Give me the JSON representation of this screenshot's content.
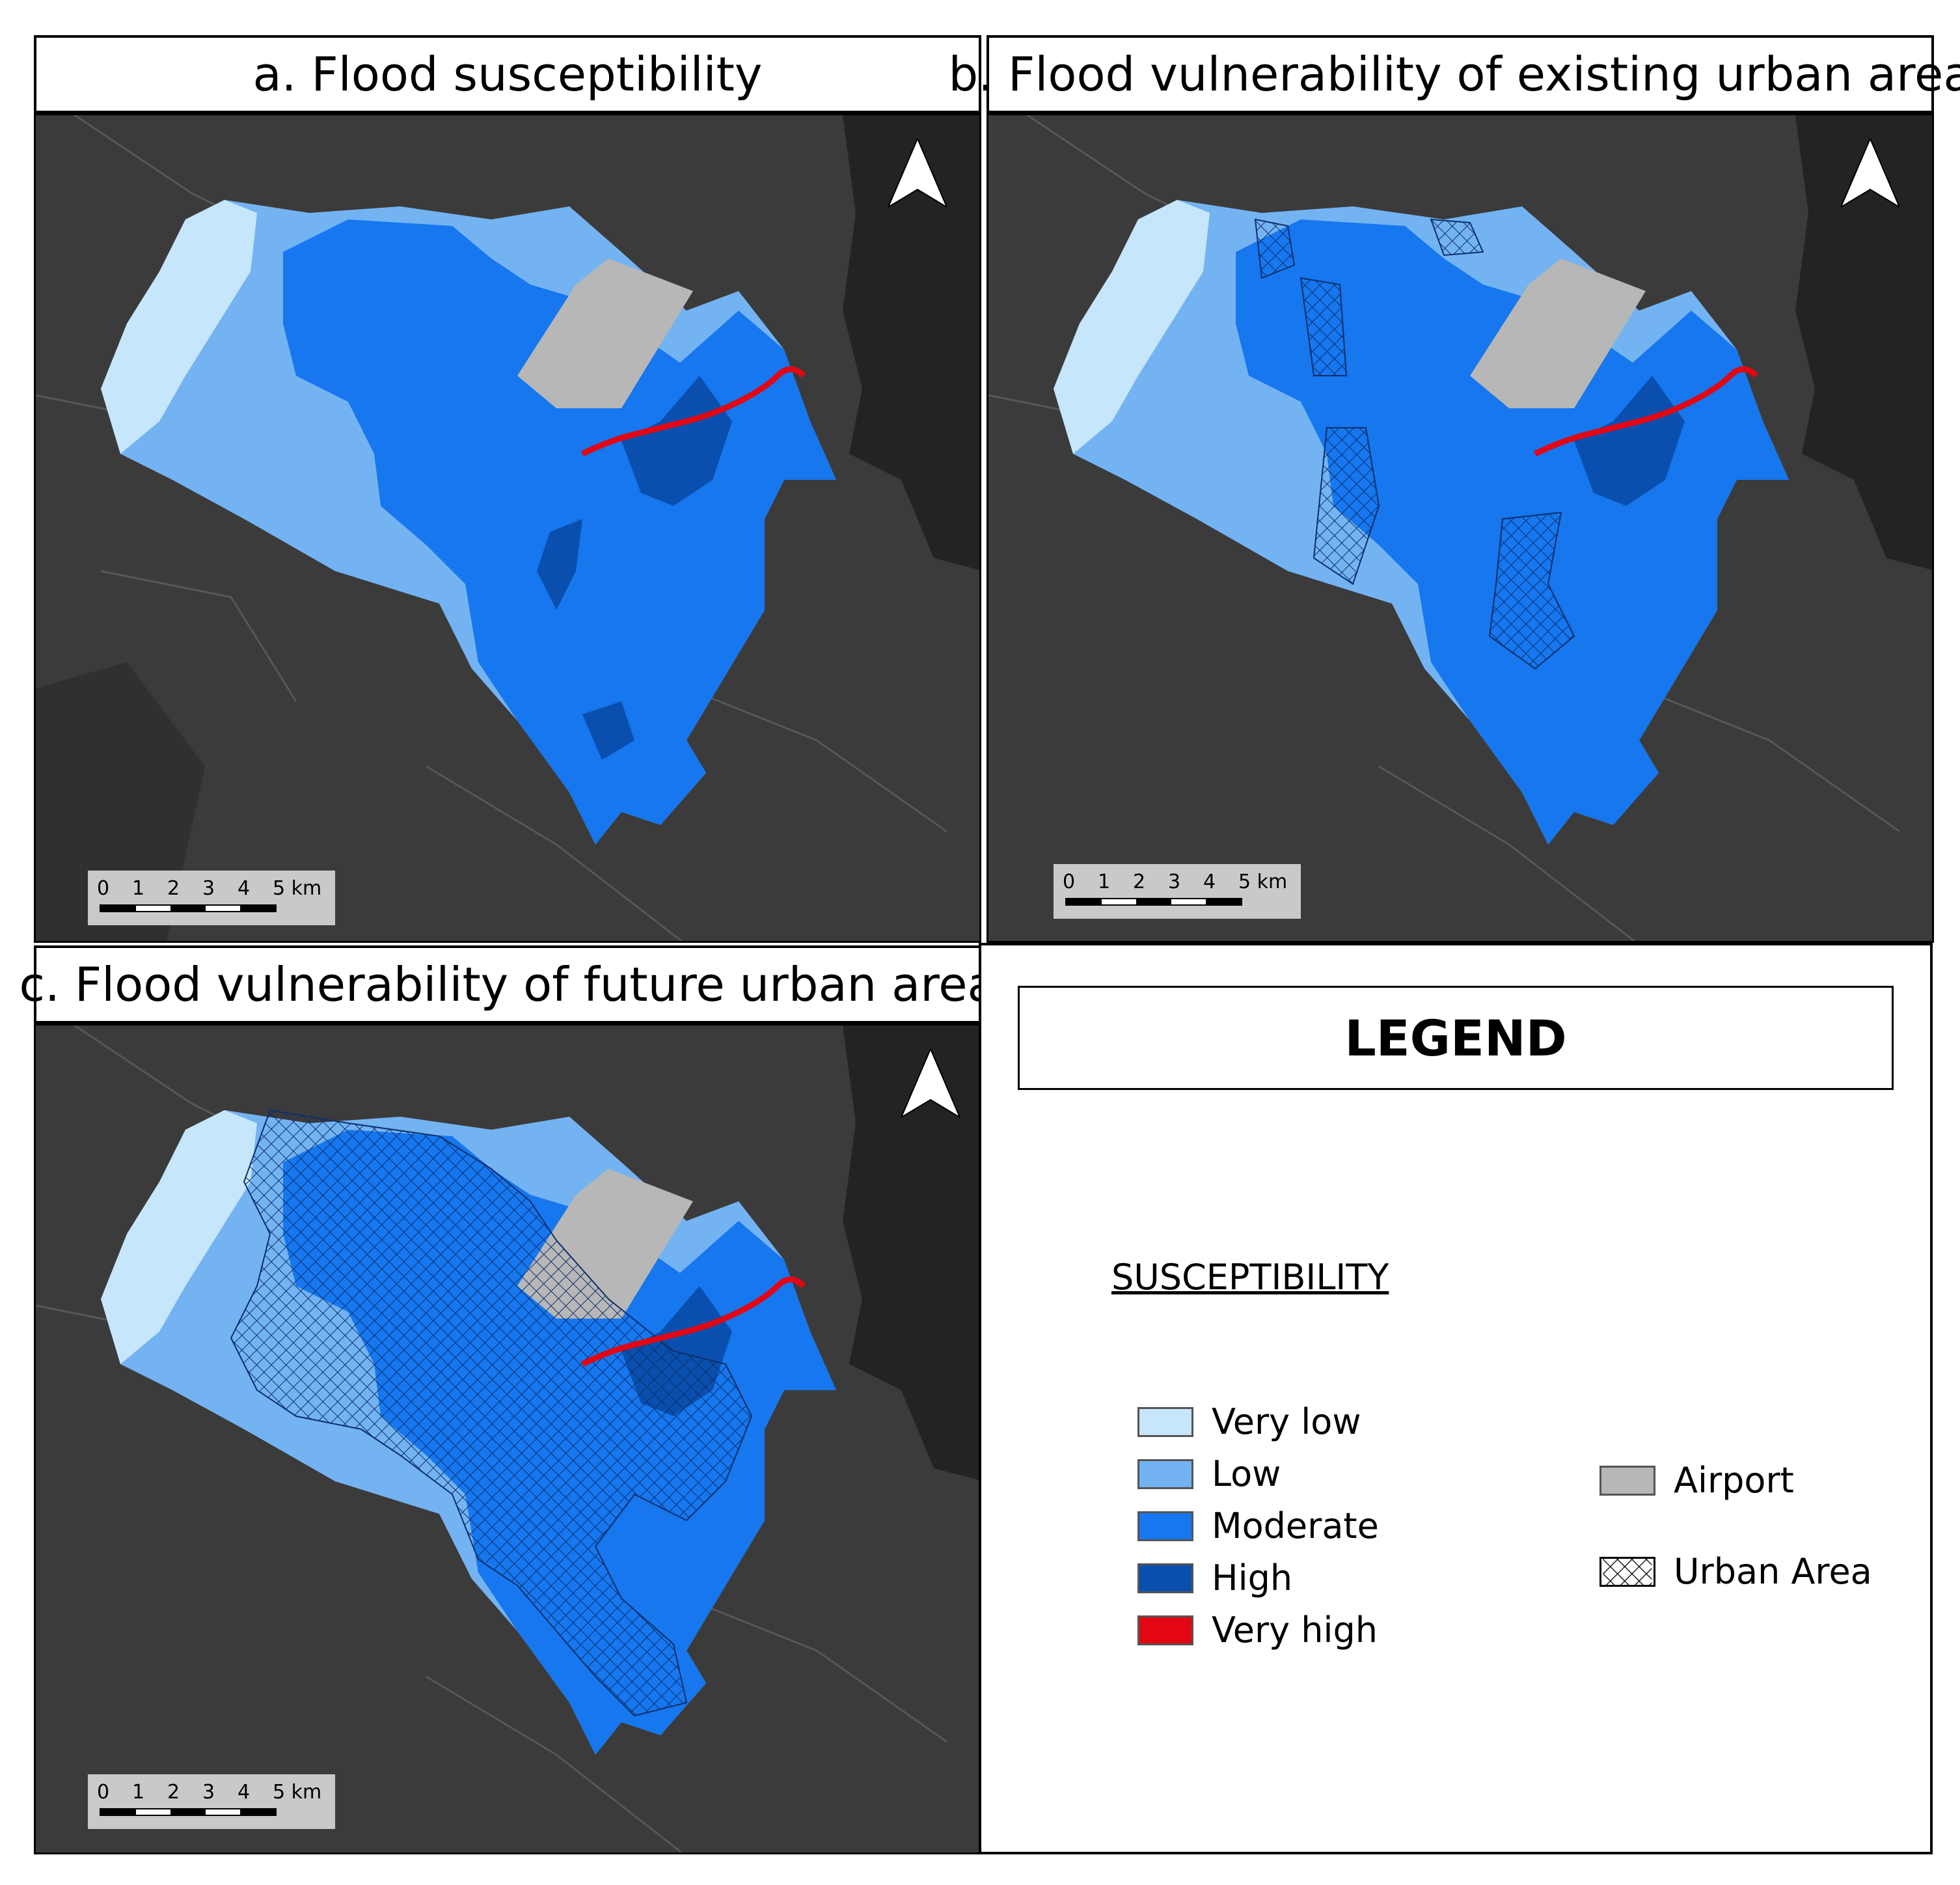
{
  "panels": {
    "a": {
      "title": "a. Flood susceptibility"
    },
    "b": {
      "title": "b. Flood vulnerability of existing urban area"
    },
    "c": {
      "title": "c. Flood vulnerability of future urban area"
    }
  },
  "scalebar": {
    "ticks": [
      "0",
      "1",
      "2",
      "3",
      "4",
      "5 km"
    ]
  },
  "legend": {
    "title": "LEGEND",
    "susceptibility_heading": "SUSCEPTIBILITY",
    "classes": [
      {
        "label": "Very low",
        "color": "#c6e6fb"
      },
      {
        "label": "Low",
        "color": "#74b3f2"
      },
      {
        "label": "Moderate",
        "color": "#1677ee"
      },
      {
        "label": "High",
        "color": "#0a4fae"
      },
      {
        "label": "Very high",
        "color": "#e30613"
      }
    ],
    "other": [
      {
        "label": "Airport",
        "color": "#b7b7b7"
      },
      {
        "label": "Urban Area",
        "pattern": "crosshatch"
      }
    ]
  },
  "colors": {
    "basemap": "#3b3b3b",
    "basemap_dark": "#232323",
    "road": "#555555"
  }
}
